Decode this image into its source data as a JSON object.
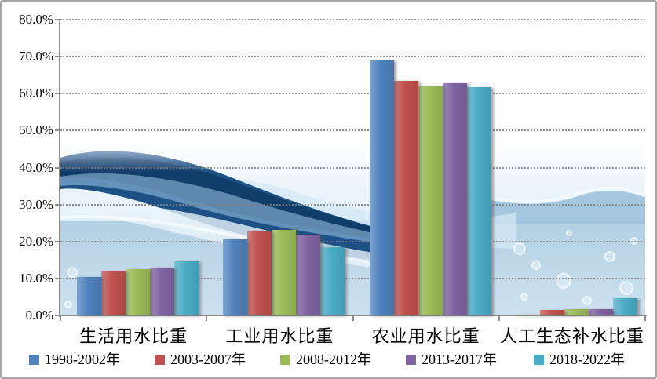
{
  "chart_data": {
    "type": "bar",
    "title": "",
    "xlabel": "",
    "ylabel": "",
    "categories": [
      "生活用水比重",
      "工业用水比重",
      "农业用水比重",
      "人工生态补水比重"
    ],
    "series": [
      {
        "name": "1998-2002年",
        "color": "#4F81BD",
        "values": [
          10.4,
          20.5,
          68.9,
          0.1
        ]
      },
      {
        "name": "2003-2007年",
        "color": "#C0504D",
        "values": [
          11.9,
          22.8,
          63.5,
          1.4
        ]
      },
      {
        "name": "2008-2012年",
        "color": "#9BBB59",
        "values": [
          12.5,
          23.2,
          62.0,
          1.6
        ]
      },
      {
        "name": "2013-2017年",
        "color": "#8064A2",
        "values": [
          13.0,
          21.8,
          62.9,
          1.8
        ]
      },
      {
        "name": "2018-2022年",
        "color": "#4BACC6",
        "values": [
          14.7,
          18.4,
          61.8,
          4.7
        ]
      }
    ],
    "y_ticks": [
      "0.0%",
      "10.0%",
      "20.0%",
      "30.0%",
      "40.0%",
      "50.0%",
      "60.0%",
      "70.0%",
      "80.0%"
    ],
    "ylim": [
      0,
      80
    ],
    "grid": "dotted-horizontal",
    "legend_position": "bottom"
  },
  "style": {
    "axis_color": "#8e8e8e",
    "grid_color": "#7f7f7f",
    "frame_border_color": "#a6a6a6",
    "text_color": "#000000",
    "plot_background": "#ffffff"
  }
}
